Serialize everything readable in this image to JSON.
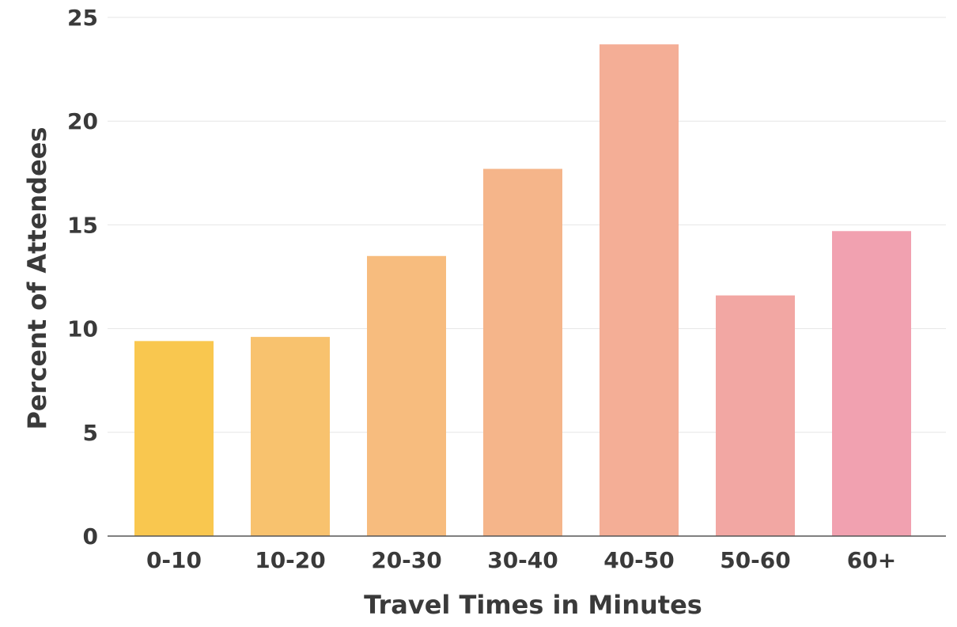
{
  "chart_data": {
    "type": "bar",
    "title": "",
    "xlabel": "Travel Times in Minutes",
    "ylabel": "Percent of Attendees",
    "categories": [
      "0-10",
      "10-20",
      "20-30",
      "30-40",
      "40-50",
      "50-60",
      "60+"
    ],
    "values": [
      9.4,
      9.6,
      13.5,
      17.7,
      23.7,
      11.6,
      14.7
    ],
    "ylim": [
      0,
      25
    ],
    "yticks": [
      0,
      5,
      10,
      15,
      20,
      25
    ],
    "ytick_labels": [
      "0",
      "5",
      "10",
      "15",
      "20",
      "25"
    ],
    "grid": true,
    "legend": "none",
    "colors": [
      "#f9c74f",
      "#f8c26e",
      "#f7bc7e",
      "#f5b58a",
      "#f4ae96",
      "#f2a7a3",
      "#f1a1b0"
    ]
  }
}
